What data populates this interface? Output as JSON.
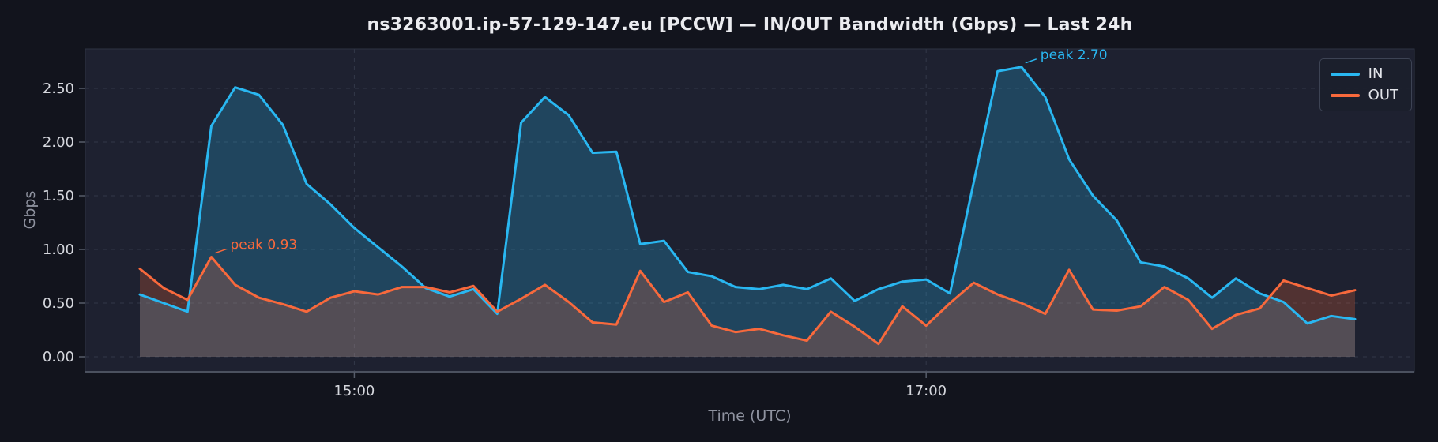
{
  "page": {
    "background": "#12141d",
    "plot_background": "#1e2130"
  },
  "chart_data": {
    "type": "line",
    "title": "ns3263001.ip-57-129-147.eu [PCCW] — IN/OUT Bandwidth (Gbps) — Last 24h",
    "xlabel": "Time (UTC)",
    "ylabel": "Gbps",
    "grid": "on",
    "grid_style": "dashed",
    "legend_position": "upper right",
    "ylim": [
      0,
      2.87
    ],
    "y_ticks": [
      {
        "label": "0.00",
        "value": 0.0
      },
      {
        "label": "0.50",
        "value": 0.5
      },
      {
        "label": "1.00",
        "value": 1.0
      },
      {
        "label": "1.50",
        "value": 1.5
      },
      {
        "label": "2.00",
        "value": 2.0
      },
      {
        "label": "2.50",
        "value": 2.5
      }
    ],
    "x_ticks": [
      {
        "label": "15:00",
        "index": 9
      },
      {
        "label": "17:00",
        "index": 33
      }
    ],
    "series": [
      {
        "name": "IN",
        "color": "#29b7f1",
        "fill_opacity": 0.24,
        "values": [
          0.58,
          0.5,
          0.42,
          2.15,
          2.51,
          2.44,
          2.16,
          1.61,
          1.42,
          1.2,
          1.02,
          0.84,
          0.64,
          0.56,
          0.63,
          0.4,
          2.18,
          2.42,
          2.25,
          1.9,
          1.91,
          1.05,
          1.08,
          0.79,
          0.75,
          0.65,
          0.63,
          0.67,
          0.63,
          0.73,
          0.52,
          0.63,
          0.7,
          0.72,
          0.59,
          1.63,
          2.66,
          2.7,
          2.42,
          1.84,
          1.5,
          1.27,
          0.88,
          0.84,
          0.73,
          0.55,
          0.73,
          0.59,
          0.51,
          0.31,
          0.38,
          0.35
        ]
      },
      {
        "name": "OUT",
        "color": "#f8693c",
        "fill_opacity": 0.24,
        "values": [
          0.82,
          0.64,
          0.53,
          0.93,
          0.67,
          0.55,
          0.49,
          0.42,
          0.55,
          0.61,
          0.58,
          0.65,
          0.65,
          0.6,
          0.66,
          0.42,
          0.54,
          0.67,
          0.51,
          0.32,
          0.3,
          0.8,
          0.51,
          0.6,
          0.29,
          0.23,
          0.26,
          0.2,
          0.15,
          0.42,
          0.28,
          0.12,
          0.47,
          0.29,
          0.5,
          0.69,
          0.58,
          0.5,
          0.4,
          0.81,
          0.44,
          0.43,
          0.47,
          0.65,
          0.53,
          0.26,
          0.39,
          0.45,
          0.71,
          0.64,
          0.57,
          0.62
        ]
      }
    ],
    "annotations": [
      {
        "text": "peak 2.70",
        "series_index": 0,
        "point_index": 37
      },
      {
        "text": "peak 0.93",
        "series_index": 1,
        "point_index": 3
      }
    ]
  }
}
